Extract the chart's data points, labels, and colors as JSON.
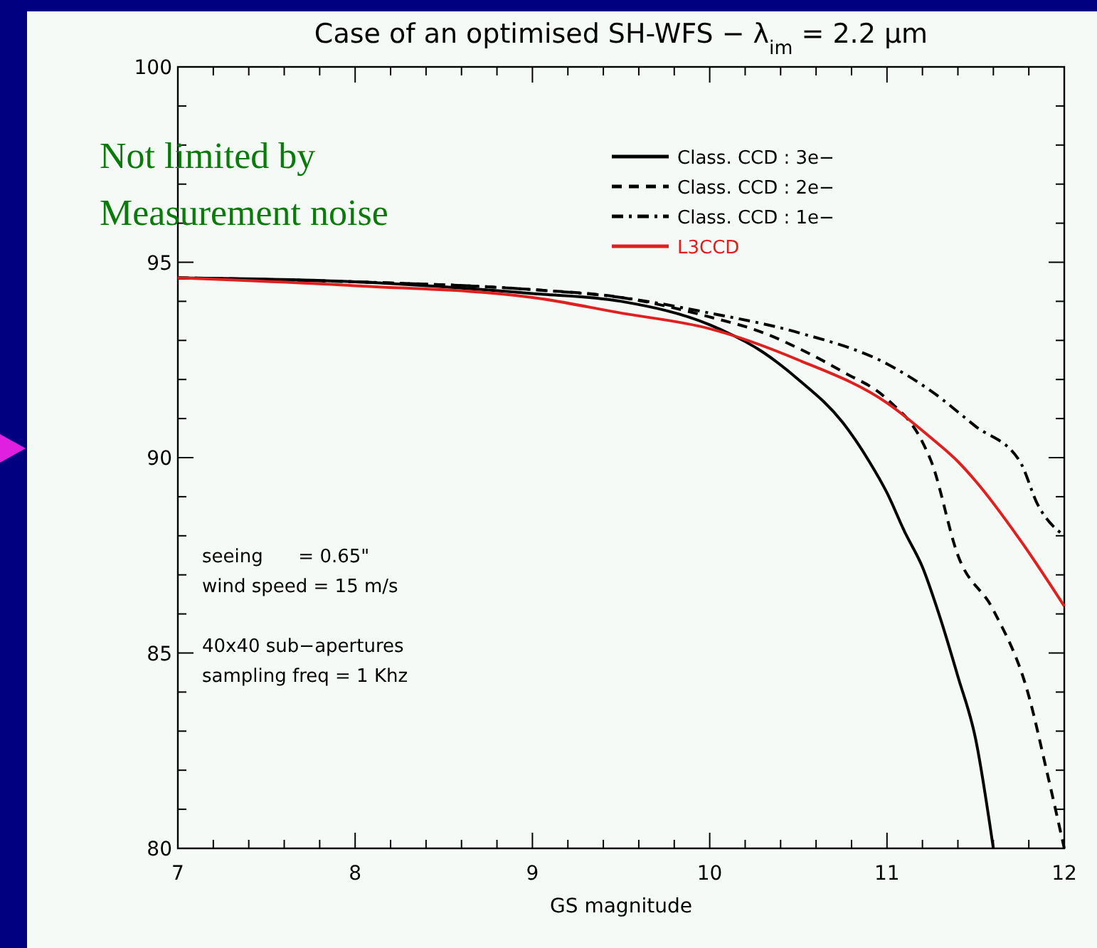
{
  "chart_data": {
    "type": "line",
    "title": "Case of an optimised SH-WFS − λ$_{im}$ = 2.2 μm",
    "xlabel": "GS magnitude",
    "xlim": [
      7,
      12
    ],
    "ylim": [
      80,
      100
    ],
    "xticks": [
      7,
      {
        "value": 7.2,
        "label": null
      },
      {
        "value": 7.4,
        "label": null
      },
      {
        "value": 7.6,
        "label": null
      },
      {
        "value": 7.8,
        "label": null
      },
      8,
      {
        "value": 8.2,
        "label": null
      },
      {
        "value": 8.4,
        "label": null
      },
      {
        "value": 8.6,
        "label": null
      },
      {
        "value": 8.8,
        "label": null
      },
      9,
      {
        "value": 9.2,
        "label": null
      },
      {
        "value": 9.4,
        "label": null
      },
      {
        "value": 9.6,
        "label": null
      },
      {
        "value": 9.8,
        "label": null
      },
      10,
      {
        "value": 10.2,
        "label": null
      },
      {
        "value": 10.4,
        "label": null
      },
      {
        "value": 10.6,
        "label": null
      },
      {
        "value": 10.8,
        "label": null
      },
      11,
      {
        "value": 11.2,
        "label": null
      },
      {
        "value": 11.4,
        "label": null
      },
      {
        "value": 11.6,
        "label": null
      },
      {
        "value": 11.8,
        "label": null
      },
      12
    ],
    "yticks": [
      80,
      {
        "value": 81,
        "label": null
      },
      {
        "value": 82,
        "label": null
      },
      {
        "value": 83,
        "label": null
      },
      {
        "value": 84,
        "label": null
      },
      85,
      {
        "value": 86,
        "label": null
      },
      {
        "value": 87,
        "label": null
      },
      {
        "value": 88,
        "label": null
      },
      {
        "value": 89,
        "label": null
      },
      90,
      {
        "value": 91,
        "label": null
      },
      {
        "value": 92,
        "label": null
      },
      {
        "value": 93,
        "label": null
      },
      {
        "value": 94,
        "label": null
      },
      95,
      {
        "value": 96,
        "label": null
      },
      {
        "value": 97,
        "label": null
      },
      {
        "value": 98,
        "label": null
      },
      {
        "value": 99,
        "label": null
      },
      100
    ],
    "legend": "top right",
    "grid": false,
    "marker": "none",
    "series": [
      {
        "name": "Class. CCD : 3e−",
        "color": "#000000",
        "line_style": "solid",
        "x": [
          7,
          8,
          9,
          9.5,
          10,
          10.3,
          10.5,
          10.75,
          10.9,
          11,
          11.1,
          11.2,
          11.3,
          11.4,
          11.5,
          11.6
        ],
        "values": [
          94.6,
          94.5,
          94.2,
          94.0,
          93.4,
          92.7,
          92.0,
          90.9,
          89.9,
          89.1,
          88.1,
          87.2,
          85.9,
          84.4,
          82.8,
          80
        ]
      },
      {
        "name": "Class. CCD : 2e−",
        "color": "#000000",
        "line_style": "dashed",
        "x": [
          7,
          8,
          9,
          9.5,
          10,
          10.3,
          10.5,
          10.75,
          11,
          11.2,
          11.25,
          11.4,
          11.6,
          11.8,
          11.9,
          12
        ],
        "values": [
          94.6,
          94.5,
          94.3,
          94.1,
          93.6,
          93.2,
          92.8,
          92.2,
          91.5,
          90.4,
          89.9,
          87.5,
          86.1,
          83.9,
          82.0,
          80
        ]
      },
      {
        "name": "Class. CCD : 1e−",
        "color": "#000000",
        "line_style": "dashdot",
        "x": [
          7,
          8,
          9,
          9.5,
          10,
          10.5,
          11,
          11.25,
          11.5,
          11.75,
          11.85,
          12
        ],
        "values": [
          94.6,
          94.5,
          94.3,
          94.1,
          93.7,
          93.2,
          92.4,
          91.7,
          90.8,
          89.9,
          88.8,
          88.0
        ]
      },
      {
        "name": "L3CCD",
        "color": "#e0201e",
        "line_style": "solid",
        "x": [
          7,
          8,
          9,
          9.5,
          10,
          10.5,
          11,
          11.25,
          11.4,
          11.5,
          11.75,
          12
        ],
        "values": [
          94.6,
          94.4,
          94.1,
          93.7,
          93.3,
          92.5,
          91.4,
          90.5,
          89.9,
          89.4,
          87.9,
          86.2
        ]
      }
    ],
    "annotations": [
      "Not limited by\nMeasurement noise",
      "seeing      = 0.65\"\nwind speed = 15 m/s\n\n40x40 sub−apertures\nsampling freq = 1 Khz"
    ]
  }
}
